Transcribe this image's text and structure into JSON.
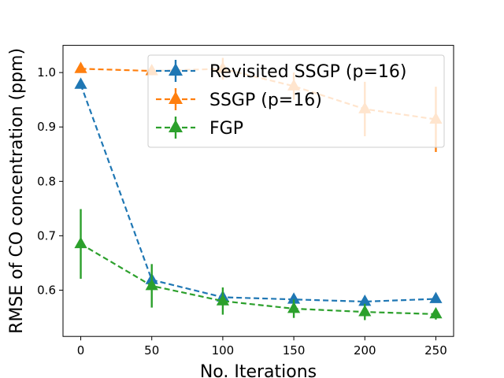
{
  "chart_data": {
    "type": "line",
    "title": "",
    "xlabel": "No. Iterations",
    "ylabel": "RMSE of CO concentration (ppm)",
    "xlim": [
      -12.5,
      262.5
    ],
    "ylim": [
      0.515,
      1.05
    ],
    "xticks": [
      0,
      50,
      100,
      150,
      200,
      250
    ],
    "yticks": [
      0.6,
      0.7,
      0.8,
      0.9,
      1.0
    ],
    "xtick_labels": [
      "0",
      "50",
      "100",
      "150",
      "200",
      "250"
    ],
    "ytick_labels": [
      "0.6",
      "0.7",
      "0.8",
      "0.9",
      "1.0"
    ],
    "grid": false,
    "legend_position": "top-right",
    "x": [
      0,
      50,
      100,
      150,
      200,
      250
    ],
    "series": [
      {
        "name": "Revisited SSGP (p=16)",
        "color": "#1f77b4",
        "values": [
          0.978,
          0.619,
          0.587,
          0.583,
          0.579,
          0.584
        ],
        "errors": [
          0.006,
          0.01,
          0.006,
          0.005,
          0.005,
          0.005
        ]
      },
      {
        "name": "SSGP (p=16)",
        "color": "#ff7f0e",
        "values": [
          1.007,
          1.003,
          1.007,
          0.975,
          0.933,
          0.914
        ],
        "errors": [
          0.005,
          0.008,
          0.02,
          0.025,
          0.05,
          0.06
        ]
      },
      {
        "name": "FGP",
        "color": "#2ca02c",
        "values": [
          0.685,
          0.608,
          0.58,
          0.566,
          0.56,
          0.556
        ],
        "errors": [
          0.064,
          0.04,
          0.025,
          0.017,
          0.015,
          0.01
        ]
      }
    ]
  }
}
